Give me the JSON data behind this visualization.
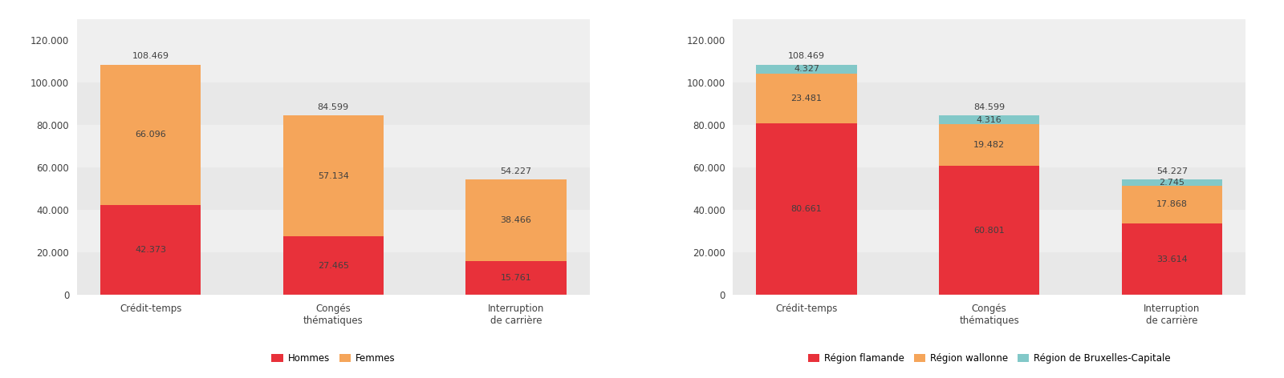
{
  "chart1": {
    "categories": [
      "Crédit-temps",
      "Congés\nthématiques",
      "Interruption\nde carrière"
    ],
    "hommes": [
      42373,
      27465,
      15761
    ],
    "femmes": [
      66096,
      57134,
      38466
    ],
    "totals": [
      108469,
      84599,
      54227
    ],
    "color_hommes": "#E8313A",
    "color_femmes": "#F5A55A",
    "legend": [
      "Hommes",
      "Femmes"
    ]
  },
  "chart2": {
    "categories": [
      "Crédit-temps",
      "Congés\nthématiques",
      "Interruption\nde carrière"
    ],
    "flamande": [
      80661,
      60801,
      33614
    ],
    "wallonne": [
      23481,
      19482,
      17868
    ],
    "bruxelles": [
      4327,
      4316,
      2745
    ],
    "totals": [
      108469,
      84599,
      54227
    ],
    "color_flamande": "#E8313A",
    "color_wallonne": "#F5A55A",
    "color_bruxelles": "#82C8C8",
    "legend": [
      "Région flamande",
      "Région wallonne",
      "Région de Bruxelles-Capitale"
    ]
  },
  "ylim": [
    0,
    130000
  ],
  "yticks": [
    0,
    20000,
    40000,
    60000,
    80000,
    100000,
    120000
  ],
  "ytick_labels": [
    "0",
    "20.000",
    "40.000",
    "60.000",
    "80.000",
    "100.000",
    "120.000"
  ],
  "band_colors": [
    "#e8e8e8",
    "#efefef",
    "#e8e8e8",
    "#efefef",
    "#e8e8e8",
    "#efefef"
  ],
  "background_color": "#ffffff",
  "bar_width": 0.55,
  "label_fontsize": 8,
  "legend_fontsize": 8.5,
  "tick_fontsize": 8.5,
  "text_color": "#404040"
}
